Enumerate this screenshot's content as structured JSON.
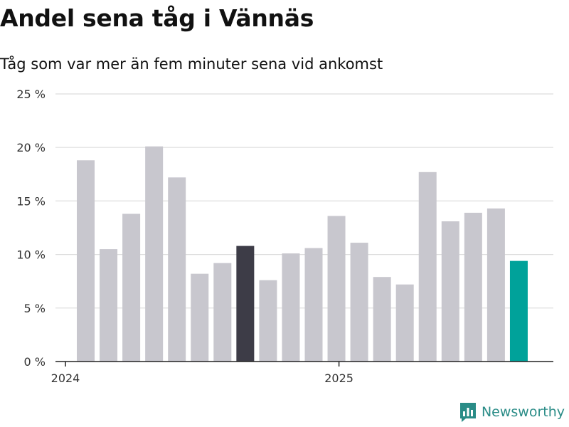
{
  "title": "Andel sena tåg i Vännäs",
  "subtitle": "Tåg som var mer än fem minuter sena vid ankomst",
  "brand": "Newsworthy",
  "colors": {
    "bar": "#c8c7ce",
    "highlight_dark": "#3d3c47",
    "highlight_teal": "#00a29a",
    "grid": "#dddddd",
    "axis": "#222222"
  },
  "chart_data": {
    "type": "bar",
    "title": "Andel sena tåg i Vännäs",
    "subtitle": "Tåg som var mer än fem minuter sena vid ankomst",
    "xlabel": "",
    "ylabel": "",
    "ylim": [
      0,
      25
    ],
    "yticks": [
      0,
      5,
      10,
      15,
      20,
      25
    ],
    "ytick_labels": [
      "0 %",
      "5 %",
      "10 %",
      "15 %",
      "20 %",
      "25 %"
    ],
    "categories": [
      "2024-01",
      "2024-02",
      "2024-03",
      "2024-04",
      "2024-05",
      "2024-06",
      "2024-07",
      "2024-08",
      "2024-09",
      "2024-10",
      "2024-11",
      "2024-12",
      "2025-01",
      "2025-02",
      "2025-03",
      "2025-04",
      "2025-05",
      "2025-06",
      "2025-07",
      "2025-08"
    ],
    "values": [
      18.8,
      10.5,
      13.8,
      20.1,
      17.2,
      8.2,
      9.2,
      10.8,
      7.6,
      10.1,
      10.6,
      13.6,
      11.1,
      7.9,
      7.2,
      17.7,
      13.1,
      13.9,
      14.3,
      9.4
    ],
    "highlight": {
      "2024-08": "dark",
      "2025-08": "teal"
    },
    "xtick_labels": [
      {
        "label": "2024",
        "index": 0
      },
      {
        "label": "2025",
        "index": 12
      }
    ],
    "grid": true
  }
}
